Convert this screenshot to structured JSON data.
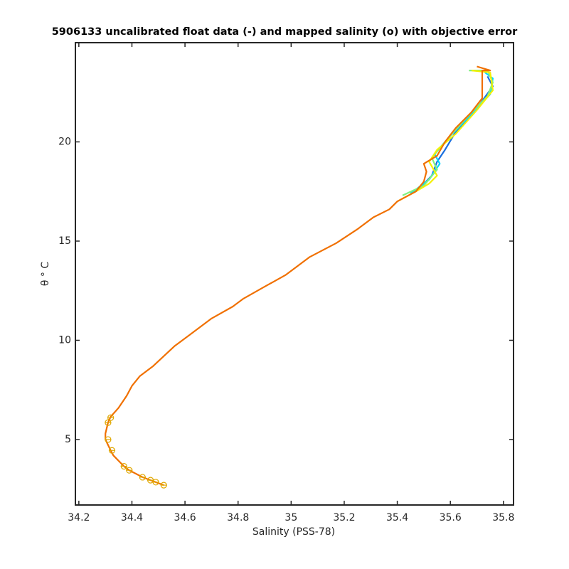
{
  "chart_data": {
    "type": "line",
    "title": "5906133 uncalibrated float data (-) and mapped salinity (o) with objective error",
    "x_label": "Salinity (PSS-78)",
    "y_label": "θ ° C",
    "xlim": [
      34.187,
      35.838
    ],
    "ylim": [
      1.7,
      25
    ],
    "xticks": [
      34.2,
      34.4,
      34.6,
      34.8,
      35,
      35.2,
      35.4,
      35.6,
      35.8
    ],
    "yticks": [
      5,
      10,
      15,
      20
    ],
    "grid": false,
    "series": [
      {
        "color": "#1a6fdf",
        "x": [
          35.48,
          35.53,
          35.55,
          35.58,
          35.62,
          35.7,
          35.76,
          35.74
        ],
        "values": [
          17.6,
          18.3,
          19.0,
          19.6,
          20.5,
          21.7,
          22.8,
          23.3
        ]
      },
      {
        "color": "#00d6ff",
        "x": [
          35.45,
          35.52,
          35.56,
          35.54,
          35.6,
          35.68,
          35.75,
          35.76,
          35.73
        ],
        "values": [
          17.4,
          18.1,
          18.9,
          19.4,
          20.3,
          21.4,
          22.4,
          23.2,
          23.5
        ]
      },
      {
        "color": "#7ff07f",
        "x": [
          35.42,
          35.5,
          35.55,
          35.53,
          35.58,
          35.66,
          35.74,
          35.76,
          35.74,
          35.67
        ],
        "values": [
          17.3,
          17.8,
          18.6,
          19.2,
          20.0,
          21.2,
          22.3,
          23.0,
          23.6,
          23.6
        ]
      },
      {
        "color": "#f5f000",
        "x": [
          35.4,
          35.47,
          35.52,
          35.55,
          35.52,
          35.55,
          35.62,
          35.7,
          35.76,
          35.75,
          35.68
        ],
        "values": [
          17.0,
          17.5,
          17.9,
          18.3,
          19.0,
          19.6,
          20.4,
          21.6,
          22.6,
          23.5,
          23.6
        ]
      },
      {
        "color": "#f07000",
        "x": [
          34.52,
          34.47,
          34.44,
          34.39,
          34.37,
          34.33,
          34.32,
          34.3,
          34.3,
          34.31,
          34.32,
          34.35,
          34.38,
          34.4,
          34.43,
          34.48,
          34.52,
          34.56,
          34.62,
          34.7,
          34.78,
          34.82,
          34.9,
          34.98,
          35.07,
          35.17,
          35.25,
          35.31,
          35.37,
          35.4,
          35.47,
          35.5,
          35.51,
          35.5,
          35.55,
          35.58,
          35.62,
          35.68,
          35.72,
          35.72,
          35.75,
          35.7
        ],
        "values": [
          2.7,
          2.95,
          3.1,
          3.45,
          3.65,
          4.2,
          4.45,
          5.0,
          5.3,
          5.85,
          6.15,
          6.6,
          7.2,
          7.7,
          8.2,
          8.7,
          9.2,
          9.7,
          10.3,
          11.1,
          11.7,
          12.1,
          12.7,
          13.3,
          14.2,
          14.9,
          15.6,
          16.2,
          16.6,
          17.0,
          17.5,
          18.0,
          18.5,
          18.9,
          19.3,
          20.0,
          20.7,
          21.5,
          22.2,
          23.6,
          23.6,
          23.8
        ]
      }
    ],
    "mapped": {
      "color": "#e0a800",
      "x": [
        34.52,
        34.49,
        34.47,
        34.44,
        34.39,
        34.37,
        34.325,
        34.31,
        34.31,
        34.32
      ],
      "values": [
        2.7,
        2.85,
        2.95,
        3.1,
        3.45,
        3.65,
        4.45,
        5.0,
        5.85,
        6.1
      ],
      "errors": [
        0.012,
        0.012,
        0.012,
        0.012,
        0.012,
        0.012,
        0.012,
        0.012,
        0.012,
        0.012
      ]
    }
  }
}
